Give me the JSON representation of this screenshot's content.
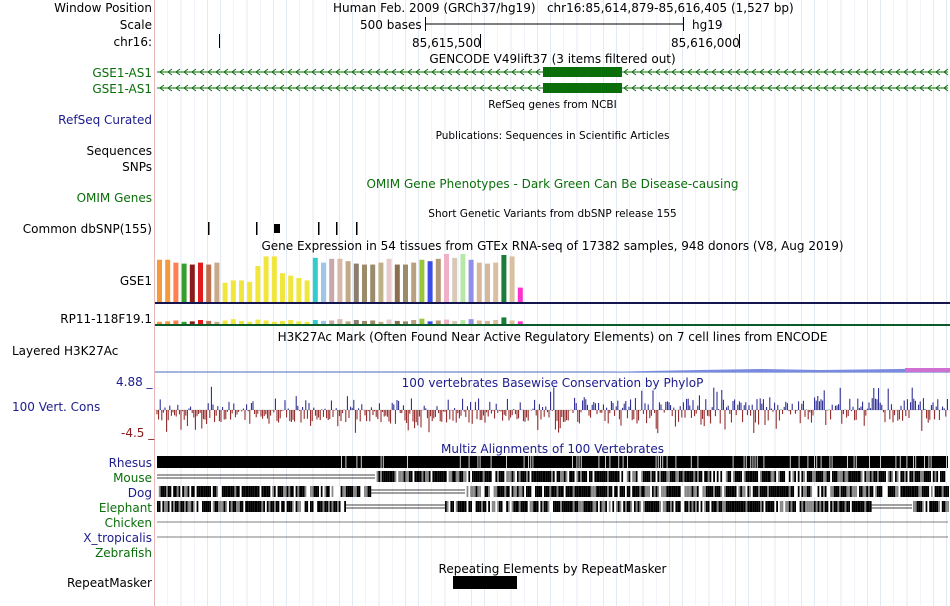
{
  "header": {
    "window_position_label": "Window Position",
    "scale_label": "Scale",
    "chrom_label": "chr16:",
    "assembly_and_position": "Human Feb. 2009 (GRCh37/hg19)   chr16:85,614,879-85,616,405 (1,527 bp)",
    "scale_text": "500 bases",
    "assembly": "hg19",
    "coord_left": "85,615,500",
    "coord_right": "85,616,000"
  },
  "tracks": {
    "gencode": {
      "title": "GENCODE V49lift37 (3 items filtered out)",
      "items": [
        "GSE1-AS1",
        "GSE1-AS1"
      ]
    },
    "refseq": {
      "title": "RefSeq genes from NCBI",
      "label": "RefSeq Curated"
    },
    "publications": {
      "title": "Publications: Sequences in Scientific Articles",
      "labels": [
        "Sequences",
        "SNPs"
      ]
    },
    "omim": {
      "title": "OMIM Gene Phenotypes - Dark Green Can Be Disease-causing",
      "label": "OMIM Genes"
    },
    "dbsnp": {
      "title": "Short Genetic Variants from dbSNP release 155",
      "label": "Common dbSNP(155)"
    },
    "gtex": {
      "title": "Gene Expression in 54 tissues from GTEx RNA-seq of 17382 samples, 948 donors (V8, Aug 2019)",
      "genes": [
        "GSE1",
        "RP11-118F19.1"
      ],
      "tissue_colors": [
        "#f59a3c",
        "#f59a3c",
        "#ff7f50",
        "#33a02c",
        "#8b1a1a",
        "#e31a1c",
        "#bf6f4e",
        "#c8a98a",
        "#f0e63e",
        "#f0e63e",
        "#f0e63e",
        "#f0e63e",
        "#f0e63e",
        "#f0e63e",
        "#f0e63e",
        "#f0e63e",
        "#f0e63e",
        "#f0e63e",
        "#f0e63e",
        "#33cccc",
        "#9ec6e6",
        "#c8a8a8",
        "#d8b8a8",
        "#c0a888",
        "#8c7e6e",
        "#9b8b6a",
        "#9b8b6a",
        "#bfb08a",
        "#e8c8c8",
        "#8b6f4e",
        "#9b8b6a",
        "#b8a080",
        "#9ac43c",
        "#3c4ce8",
        "#b49878",
        "#f0b0c8",
        "#d8c8b8",
        "#b8e8a8",
        "#9090e8",
        "#d8b898",
        "#d8b898",
        "#d8c0a0",
        "#1c7c3c",
        "#d8c0a0",
        "#ff33cc"
      ],
      "tissue_values": [
        0.88,
        0.88,
        0.82,
        0.8,
        0.78,
        0.82,
        0.78,
        0.82,
        0.4,
        0.45,
        0.45,
        0.42,
        0.75,
        0.95,
        0.95,
        0.6,
        0.55,
        0.5,
        0.45,
        0.92,
        0.82,
        0.9,
        0.9,
        0.85,
        0.8,
        0.78,
        0.78,
        0.82,
        0.9,
        0.78,
        0.78,
        0.82,
        0.88,
        0.85,
        0.9,
        1.0,
        0.92,
        1.0,
        0.88,
        0.82,
        0.8,
        0.82,
        0.98,
        0.95,
        0.3
      ],
      "rp11_values": [
        0.1,
        0.12,
        0.16,
        0.1,
        0.12,
        0.18,
        0.14,
        0.1,
        0.16,
        0.22,
        0.14,
        0.1,
        0.2,
        0.16,
        0.1,
        0.14,
        0.18,
        0.12,
        0.1,
        0.18,
        0.14,
        0.16,
        0.22,
        0.12,
        0.18,
        0.14,
        0.16,
        0.1,
        0.2,
        0.14,
        0.12,
        0.18,
        0.24,
        0.12,
        0.16,
        0.2,
        0.14,
        0.18,
        0.22,
        0.16,
        0.14,
        0.18,
        0.3,
        0.16,
        0.12
      ]
    },
    "h3k27ac": {
      "title": "H3K27Ac Mark (Often Found Near Active Regulatory Elements) on 7 cell lines from ENCODE",
      "label": "Layered H3K27Ac"
    },
    "conservation": {
      "title": "100 vertebrates Basewise Conservation by PhyloP",
      "label": "100 Vert. Cons",
      "max": "4.88 _",
      "min": "-4.5 _"
    },
    "multiz": {
      "title": "Multiz Alignments of 100 Vertebrates",
      "species": [
        "Rhesus",
        "Mouse",
        "Dog",
        "Elephant",
        "Chicken",
        "X_tropicalis",
        "Zebrafish"
      ]
    },
    "repeatmasker": {
      "title": "Repeating Elements by RepeatMasker",
      "label": "RepeatMasker"
    }
  },
  "colors": {
    "gencode": "#0a6e0a",
    "label_blue": "#1c1c8c",
    "cons_pos": "#1c1c8c",
    "cons_neg": "#8b1a1a",
    "gtex_baseline": "#14144e"
  }
}
